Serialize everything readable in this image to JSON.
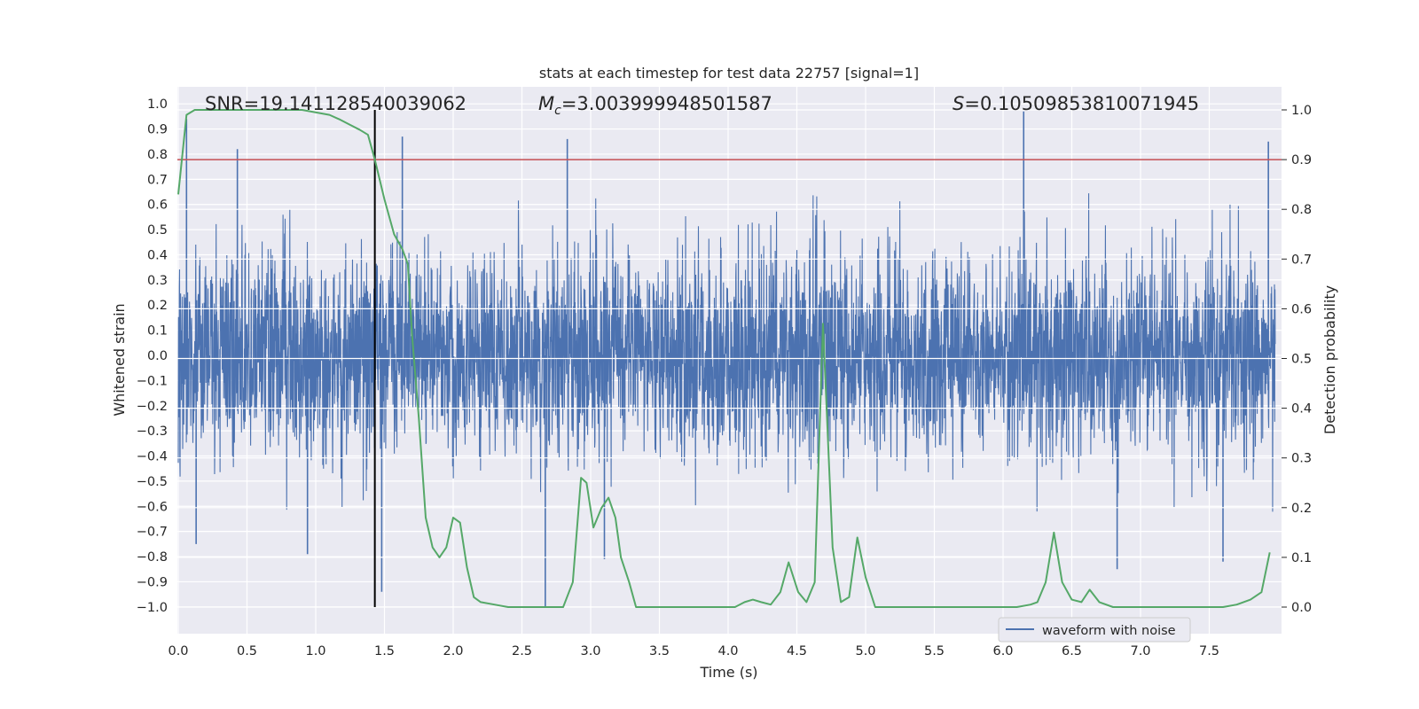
{
  "chart_data": {
    "type": "line",
    "title": "stats at each timestep for test data 22757 [signal=1]",
    "xlabel": "Time (s)",
    "ylabel_left": "Whitened strain",
    "ylabel_right": "Detection probability",
    "xlim": [
      0,
      8
    ],
    "ylim_left": [
      -1.1,
      1.05
    ],
    "ylim_right": [
      -0.05,
      1.03
    ],
    "x_ticks": [
      "0.0",
      "0.5",
      "1.0",
      "1.5",
      "2.0",
      "2.5",
      "3.0",
      "3.5",
      "4.0",
      "4.5",
      "5.0",
      "5.5",
      "6.0",
      "6.5",
      "7.0",
      "7.5"
    ],
    "y_ticks_left": [
      "1.0",
      "0.9",
      "0.8",
      "0.7",
      "0.6",
      "0.5",
      "0.4",
      "0.3",
      "0.2",
      "0.1",
      "0.0",
      "−0.1",
      "−0.2",
      "−0.3",
      "−0.4",
      "−0.5",
      "−0.6",
      "−0.7",
      "−0.8",
      "−0.9",
      "−1.0"
    ],
    "y_ticks_right": [
      "1.0",
      "0.9",
      "0.8",
      "0.7",
      "0.6",
      "0.5",
      "0.4",
      "0.3",
      "0.2",
      "0.1",
      "0.0"
    ],
    "annotations": {
      "snr": "SNR=19.141128540039062",
      "mc_symbol": "M",
      "mc_sub": "c",
      "mc_value": "=3.003999948501587",
      "s_symbol": "S",
      "s_value": "=0.10509853810071945"
    },
    "grid": true,
    "legend_placement": "lower-right",
    "series": [
      {
        "name": "waveform with noise",
        "color": "#4c72b0",
        "axis": "left",
        "description_range": [
          -0.6,
          0.6
        ],
        "peaks": [
          {
            "x": 0.06,
            "y": 0.94
          },
          {
            "x": 0.43,
            "y": 0.82
          },
          {
            "x": 1.63,
            "y": 0.87
          },
          {
            "x": 2.83,
            "y": 0.86
          },
          {
            "x": 6.15,
            "y": 0.97
          },
          {
            "x": 7.93,
            "y": 0.85
          },
          {
            "x": 0.13,
            "y": -0.75
          },
          {
            "x": 0.94,
            "y": -0.79
          },
          {
            "x": 1.48,
            "y": -0.94
          },
          {
            "x": 2.67,
            "y": -1.0
          },
          {
            "x": 3.1,
            "y": -0.81
          },
          {
            "x": 6.83,
            "y": -0.85
          },
          {
            "x": 7.6,
            "y": -0.82
          }
        ]
      },
      {
        "name": "",
        "color": "#55a868",
        "axis": "right",
        "x": [
          0.0,
          0.06,
          0.12,
          0.3,
          0.6,
          0.9,
          1.1,
          1.18,
          1.25,
          1.32,
          1.38,
          1.43,
          1.5,
          1.57,
          1.63,
          1.67,
          1.7,
          1.75,
          1.8,
          1.85,
          1.9,
          1.95,
          2.0,
          2.05,
          2.1,
          2.15,
          2.2,
          2.3,
          2.4,
          2.5,
          2.6,
          2.7,
          2.8,
          2.87,
          2.93,
          2.97,
          3.02,
          3.08,
          3.13,
          3.18,
          3.22,
          3.28,
          3.33,
          3.38,
          3.5,
          3.7,
          3.9,
          4.05,
          4.12,
          4.18,
          4.24,
          4.31,
          4.38,
          4.44,
          4.51,
          4.57,
          4.63,
          4.69,
          4.76,
          4.82,
          4.88,
          4.94,
          5.0,
          5.07,
          5.2,
          5.5,
          5.8,
          6.1,
          6.2,
          6.25,
          6.31,
          6.37,
          6.43,
          6.5,
          6.57,
          6.63,
          6.7,
          6.8,
          7.0,
          7.2,
          7.4,
          7.6,
          7.7,
          7.8,
          7.88,
          7.94
        ],
        "y": [
          0.83,
          0.99,
          1.0,
          1.0,
          1.0,
          1.0,
          0.99,
          0.98,
          0.97,
          0.96,
          0.95,
          0.9,
          0.82,
          0.75,
          0.72,
          0.69,
          0.55,
          0.38,
          0.18,
          0.12,
          0.1,
          0.12,
          0.18,
          0.17,
          0.08,
          0.02,
          0.01,
          0.005,
          0.0,
          0.0,
          0.0,
          0.0,
          0.0,
          0.05,
          0.26,
          0.25,
          0.16,
          0.2,
          0.22,
          0.18,
          0.1,
          0.05,
          0.0,
          0.0,
          0.0,
          0.0,
          0.0,
          0.0,
          0.01,
          0.015,
          0.01,
          0.005,
          0.03,
          0.09,
          0.03,
          0.01,
          0.05,
          0.57,
          0.12,
          0.01,
          0.02,
          0.14,
          0.06,
          0.0,
          0.0,
          0.0,
          0.0,
          0.0,
          0.005,
          0.01,
          0.05,
          0.15,
          0.05,
          0.015,
          0.01,
          0.035,
          0.01,
          0.0,
          0.0,
          0.0,
          0.0,
          0.0,
          0.005,
          0.015,
          0.03,
          0.11
        ]
      }
    ],
    "threshold_line": {
      "value_right_axis": 0.9,
      "color": "#c44e52"
    },
    "vertical_marker": {
      "x": 1.43,
      "color": "#000000"
    }
  }
}
